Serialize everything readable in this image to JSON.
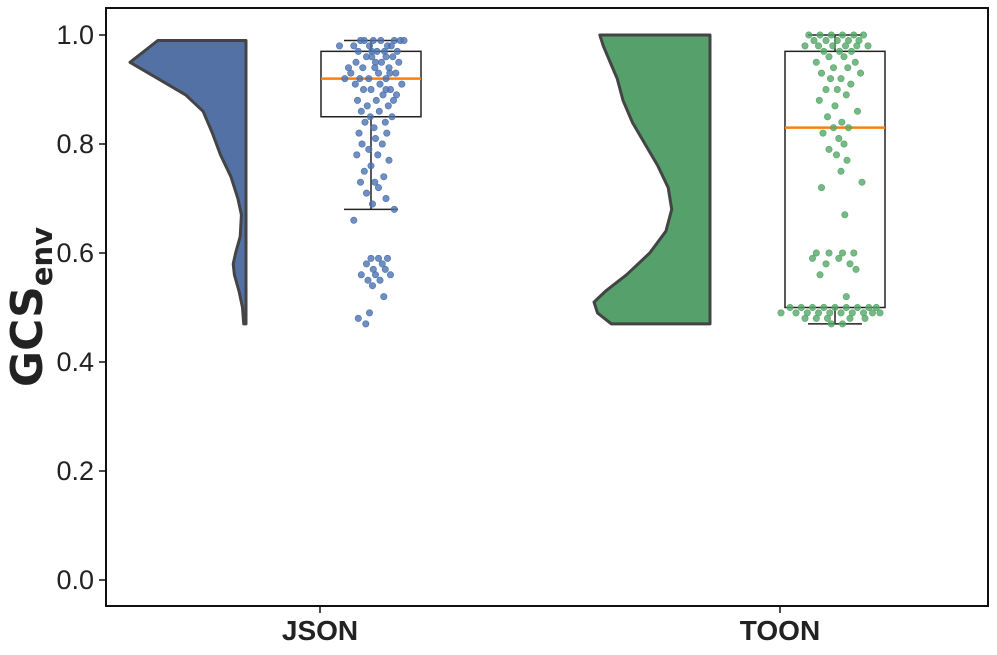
{
  "chart_data": {
    "type": "violin-box-strip",
    "ylabel": "GCS",
    "ylabel_subscript": "env",
    "ylim": [
      -0.05,
      1.05
    ],
    "yticks": [
      0.0,
      0.2,
      0.4,
      0.6,
      0.8,
      1.0
    ],
    "ytick_labels": [
      "0.0",
      "0.2",
      "0.4",
      "0.6",
      "0.8",
      "1.0"
    ],
    "categories": [
      "JSON",
      "TOON"
    ],
    "grid": false,
    "colors": {
      "JSON": "#5471a5",
      "TOON": "#55a06b",
      "JSON_points": "#4c72b0",
      "TOON_points": "#55a868",
      "median": "#ff7f0e",
      "violin_edge": "#444444",
      "box_edge": "#222222"
    },
    "series": [
      {
        "category": "JSON",
        "box": {
          "whisker_low": 0.68,
          "q1": 0.85,
          "median": 0.92,
          "q3": 0.97,
          "whisker_high": 0.99
        },
        "density": [
          [
            0.47,
            0.02
          ],
          [
            0.5,
            0.03
          ],
          [
            0.53,
            0.06
          ],
          [
            0.56,
            0.1
          ],
          [
            0.58,
            0.11
          ],
          [
            0.6,
            0.09
          ],
          [
            0.63,
            0.05
          ],
          [
            0.67,
            0.04
          ],
          [
            0.7,
            0.07
          ],
          [
            0.74,
            0.13
          ],
          [
            0.78,
            0.22
          ],
          [
            0.82,
            0.29
          ],
          [
            0.86,
            0.37
          ],
          [
            0.89,
            0.52
          ],
          [
            0.92,
            0.76
          ],
          [
            0.95,
            1.0
          ],
          [
            0.97,
            0.88
          ],
          [
            0.99,
            0.76
          ]
        ],
        "points": [
          [
            0.99,
            -0.14
          ],
          [
            0.99,
            0.13
          ],
          [
            0.99,
            0.03
          ],
          [
            0.99,
            0.39
          ],
          [
            0.99,
            -0.09
          ],
          [
            0.98,
            0.22
          ],
          [
            0.99,
            0.31
          ],
          [
            0.98,
            -0.02
          ],
          [
            0.98,
            0.27
          ],
          [
            0.98,
            -0.23
          ],
          [
            0.97,
            0.08
          ],
          [
            0.97,
            0.35
          ],
          [
            0.97,
            -0.17
          ],
          [
            0.97,
            0.18
          ],
          [
            0.96,
            -0.06
          ],
          [
            0.96,
            0.29
          ],
          [
            0.96,
            0.01
          ],
          [
            0.95,
            -0.2
          ],
          [
            0.95,
            0.14
          ],
          [
            0.95,
            0.37
          ],
          [
            0.94,
            -0.11
          ],
          [
            0.94,
            0.24
          ],
          [
            0.94,
            0.05
          ],
          [
            0.93,
            -0.27
          ],
          [
            0.93,
            0.33
          ],
          [
            0.93,
            0.1
          ],
          [
            0.92,
            -0.15
          ],
          [
            0.92,
            0.2
          ],
          [
            0.92,
            -0.03
          ],
          [
            0.91,
            0.41
          ],
          [
            0.91,
            0.12
          ],
          [
            0.91,
            -0.21
          ],
          [
            0.9,
            0.26
          ],
          [
            0.9,
            0.0
          ],
          [
            0.9,
            -0.1
          ],
          [
            0.89,
            0.34
          ],
          [
            0.89,
            0.16
          ],
          [
            0.88,
            -0.18
          ],
          [
            0.88,
            0.07
          ],
          [
            0.88,
            0.3
          ],
          [
            0.87,
            -0.05
          ],
          [
            0.87,
            0.23
          ],
          [
            0.86,
            -0.13
          ],
          [
            0.86,
            0.11
          ],
          [
            0.85,
            0.28
          ],
          [
            0.85,
            -0.01
          ],
          [
            0.84,
            0.19
          ],
          [
            0.84,
            -0.08
          ],
          [
            0.83,
            0.04
          ],
          [
            0.82,
            -0.16
          ],
          [
            0.82,
            0.21
          ],
          [
            0.81,
            0.06
          ],
          [
            0.8,
            -0.12
          ],
          [
            0.8,
            0.15
          ],
          [
            0.79,
            -0.03
          ],
          [
            0.78,
            0.09
          ],
          [
            0.78,
            -0.19
          ],
          [
            0.77,
            0.24
          ],
          [
            0.76,
            0.0
          ],
          [
            0.75,
            -0.09
          ],
          [
            0.74,
            0.17
          ],
          [
            0.73,
            0.05
          ],
          [
            0.73,
            -0.14
          ],
          [
            0.72,
            0.1
          ],
          [
            0.71,
            -0.06
          ],
          [
            0.7,
            0.2
          ],
          [
            0.69,
            0.02
          ],
          [
            0.68,
            0.31
          ],
          [
            0.66,
            -0.23
          ],
          [
            0.59,
            0.0
          ],
          [
            0.59,
            0.1
          ],
          [
            0.59,
            0.22
          ],
          [
            0.58,
            -0.06
          ],
          [
            0.58,
            0.15
          ],
          [
            0.57,
            0.03
          ],
          [
            0.57,
            0.19
          ],
          [
            0.56,
            -0.13
          ],
          [
            0.56,
            0.06
          ],
          [
            0.56,
            0.26
          ],
          [
            0.55,
            -0.04
          ],
          [
            0.55,
            0.12
          ],
          [
            0.54,
            0.02
          ],
          [
            0.52,
            0.17
          ],
          [
            0.49,
            -0.02
          ],
          [
            0.48,
            -0.17
          ],
          [
            0.47,
            -0.07
          ],
          [
            0.98,
            -0.42
          ],
          [
            0.94,
            -0.3
          ],
          [
            0.92,
            -0.35
          ],
          [
            0.99,
            0.44
          ],
          [
            0.97,
            0.01
          ],
          [
            0.95,
            0.06
          ],
          [
            0.96,
            0.2
          ],
          [
            0.93,
            0.25
          ],
          [
            0.9,
            0.2
          ]
        ]
      },
      {
        "category": "TOON",
        "box": {
          "whisker_low": 0.47,
          "q1": 0.5,
          "median": 0.83,
          "q3": 0.97,
          "whisker_high": 1.0
        },
        "density": [
          [
            0.47,
            0.85
          ],
          [
            0.49,
            0.97
          ],
          [
            0.51,
            1.0
          ],
          [
            0.53,
            0.9
          ],
          [
            0.56,
            0.72
          ],
          [
            0.6,
            0.52
          ],
          [
            0.64,
            0.38
          ],
          [
            0.68,
            0.33
          ],
          [
            0.72,
            0.36
          ],
          [
            0.76,
            0.45
          ],
          [
            0.8,
            0.56
          ],
          [
            0.84,
            0.67
          ],
          [
            0.88,
            0.75
          ],
          [
            0.92,
            0.8
          ],
          [
            0.95,
            0.86
          ],
          [
            0.98,
            0.92
          ],
          [
            1.0,
            0.95
          ]
        ],
        "points": [
          [
            1.0,
            -0.35
          ],
          [
            1.0,
            -0.2
          ],
          [
            1.0,
            -0.05
          ],
          [
            1.0,
            0.1
          ],
          [
            1.0,
            0.25
          ],
          [
            1.0,
            0.38
          ],
          [
            0.99,
            -0.28
          ],
          [
            0.99,
            -0.12
          ],
          [
            0.99,
            0.03
          ],
          [
            0.99,
            0.18
          ],
          [
            0.99,
            0.32
          ],
          [
            0.98,
            -0.4
          ],
          [
            0.98,
            -0.22
          ],
          [
            0.98,
            -0.03
          ],
          [
            0.98,
            0.14
          ],
          [
            0.98,
            0.29
          ],
          [
            0.98,
            0.44
          ],
          [
            0.97,
            -0.15
          ],
          [
            0.97,
            0.06
          ],
          [
            0.97,
            0.22
          ],
          [
            0.96,
            -0.08
          ],
          [
            0.96,
            0.12
          ],
          [
            0.95,
            0.27
          ],
          [
            0.95,
            -0.25
          ],
          [
            0.94,
            -0.02
          ],
          [
            0.94,
            0.17
          ],
          [
            0.93,
            0.34
          ],
          [
            0.93,
            -0.18
          ],
          [
            0.92,
            0.08
          ],
          [
            0.92,
            -0.06
          ],
          [
            0.91,
            0.21
          ],
          [
            0.9,
            -0.12
          ],
          [
            0.9,
            0.03
          ],
          [
            0.89,
            0.15
          ],
          [
            0.88,
            -0.21
          ],
          [
            0.87,
            0.0
          ],
          [
            0.86,
            0.3
          ],
          [
            0.85,
            -0.1
          ],
          [
            0.84,
            0.09
          ],
          [
            0.83,
            -0.02
          ],
          [
            0.83,
            0.18
          ],
          [
            0.82,
            -0.16
          ],
          [
            0.81,
            0.05
          ],
          [
            0.8,
            0.12
          ],
          [
            0.79,
            -0.08
          ],
          [
            0.78,
            0.02
          ],
          [
            0.77,
            0.16
          ],
          [
            0.75,
            0.08
          ],
          [
            0.73,
            0.36
          ],
          [
            0.72,
            -0.18
          ],
          [
            0.67,
            0.13
          ],
          [
            0.6,
            -0.25
          ],
          [
            0.6,
            -0.08
          ],
          [
            0.6,
            0.1
          ],
          [
            0.6,
            0.25
          ],
          [
            0.59,
            -0.3
          ],
          [
            0.59,
            0.05
          ],
          [
            0.58,
            0.2
          ],
          [
            0.58,
            -0.12
          ],
          [
            0.57,
            0.28
          ],
          [
            0.56,
            -0.2
          ],
          [
            0.52,
            0.15
          ],
          [
            0.5,
            -0.6
          ],
          [
            0.5,
            -0.45
          ],
          [
            0.5,
            -0.3
          ],
          [
            0.5,
            -0.15
          ],
          [
            0.5,
            0.0
          ],
          [
            0.5,
            0.15
          ],
          [
            0.5,
            0.3
          ],
          [
            0.5,
            0.45
          ],
          [
            0.49,
            -0.52
          ],
          [
            0.49,
            -0.37
          ],
          [
            0.49,
            -0.22
          ],
          [
            0.49,
            -0.07
          ],
          [
            0.49,
            0.08
          ],
          [
            0.49,
            0.23
          ],
          [
            0.49,
            0.38
          ],
          [
            0.49,
            0.5
          ],
          [
            0.49,
            -0.72
          ],
          [
            0.48,
            -0.4
          ],
          [
            0.48,
            -0.1
          ],
          [
            0.48,
            0.2
          ],
          [
            0.48,
            0.4
          ],
          [
            0.47,
            -0.05
          ],
          [
            0.47,
            0.1
          ],
          [
            0.5,
            0.55
          ],
          [
            0.49,
            0.6
          ],
          [
            0.48,
            -0.25
          ]
        ]
      }
    ]
  }
}
